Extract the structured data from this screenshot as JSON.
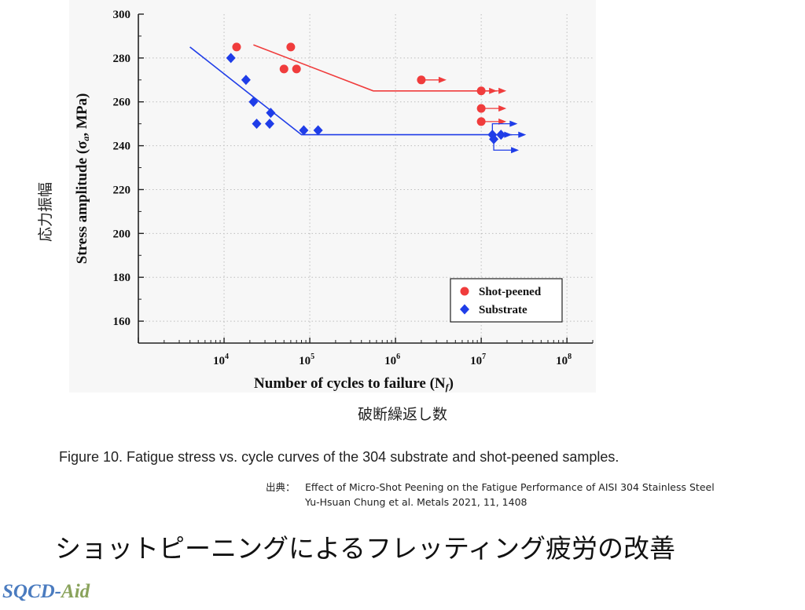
{
  "chart_data": {
    "type": "scatter",
    "xlabel": "Number of cycles to failure (N",
    "xlabel_sub": "f",
    "xlabel_close": ")",
    "ylabel": "Stress amplitude (σ",
    "ylabel_sub": "a",
    "ylabel_close": ", MPa)",
    "x_scale": "log",
    "xlim": [
      1000,
      200000000
    ],
    "ylim": [
      150,
      300
    ],
    "y_ticks": [
      160,
      180,
      200,
      220,
      240,
      260,
      280,
      300
    ],
    "x_ticks": [
      {
        "value": 10000,
        "base": "10",
        "exp": "4"
      },
      {
        "value": 100000,
        "base": "10",
        "exp": "5"
      },
      {
        "value": 1000000,
        "base": "10",
        "exp": "6"
      },
      {
        "value": 10000000,
        "base": "10",
        "exp": "7"
      },
      {
        "value": 100000000,
        "base": "10",
        "exp": "8"
      }
    ],
    "grid": true,
    "legend_position": "bottom-right",
    "series": [
      {
        "name": "Shot-peened",
        "color": "#f03c3c",
        "marker": "circle",
        "points": [
          [
            14000,
            285
          ],
          [
            60000,
            285
          ],
          [
            50000,
            275
          ],
          [
            70000,
            275
          ]
        ],
        "runouts": [
          [
            2000000,
            270
          ],
          [
            10000000,
            265
          ],
          [
            10000000,
            257
          ],
          [
            10000000,
            251
          ]
        ],
        "fit_line": [
          [
            22000,
            286
          ],
          [
            550000,
            265
          ],
          [
            10000000,
            265
          ]
        ]
      },
      {
        "name": "Substrate",
        "color": "#1f3de8",
        "marker": "diamond",
        "points": [
          [
            12000,
            280
          ],
          [
            18000,
            270
          ],
          [
            22000,
            260
          ],
          [
            24000,
            250
          ],
          [
            34000,
            250
          ],
          [
            35000,
            255
          ],
          [
            85000,
            247
          ],
          [
            125000,
            247
          ]
        ],
        "runouts": [
          [
            13500000,
            245
          ],
          [
            14000000,
            243
          ],
          [
            17000000,
            245
          ]
        ],
        "fit_line": [
          [
            4000,
            285
          ],
          [
            80000,
            245
          ],
          [
            15000000,
            245
          ]
        ]
      }
    ]
  },
  "labels": {
    "jp_ylabel": "応力振幅",
    "jp_xlabel": "破断繰返し数",
    "caption": "Figure 10. Fatigue stress vs. cycle curves of the 304 substrate and shot-peened samples.",
    "source_label": "出典：",
    "source_line1": "Effect of Micro-Shot Peening on the Fatigue Performance of AISI 304 Stainless Steel",
    "source_line2": "Yu-Hsuan  Chung  et al.    Metals 2021, 11, 1408",
    "slide_title": "ショットピーニングによるフレッティング疲労の改善",
    "brand_main": "SQCD-",
    "brand_accent": "Aid"
  }
}
